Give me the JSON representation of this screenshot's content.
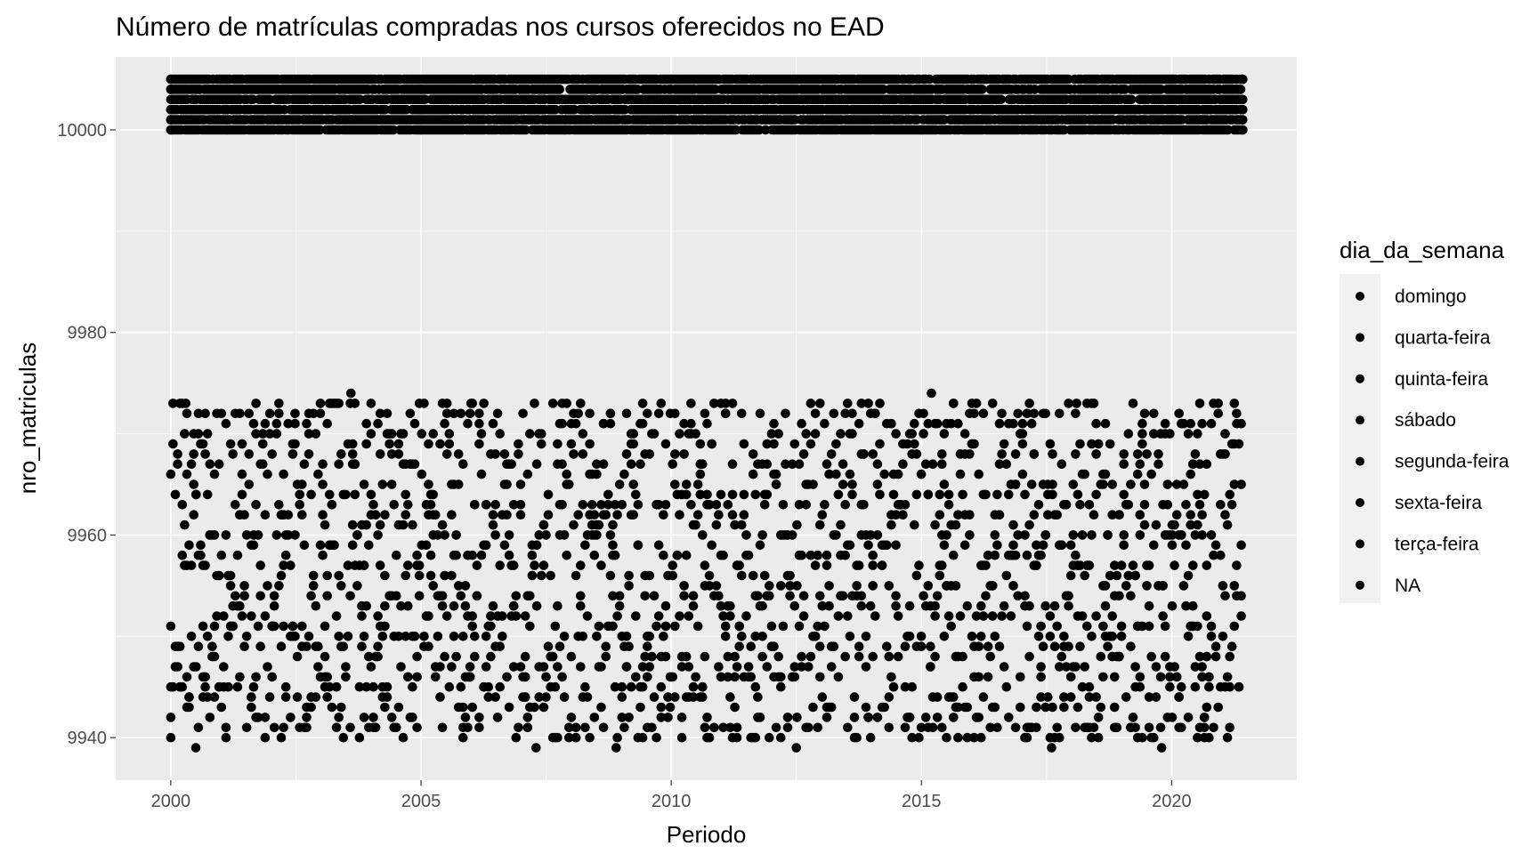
{
  "chart_data": {
    "type": "scatter",
    "title": "Número de matrículas compradas nos cursos oferecidos no EAD",
    "xlabel": "Periodo",
    "ylabel": "nro_matriculas",
    "xlim": [
      1998.9,
      2022.5
    ],
    "ylim": [
      9935.8,
      10007.2
    ],
    "x_ticks": [
      {
        "value": 2000,
        "label": "2000"
      },
      {
        "value": 2005,
        "label": "2005"
      },
      {
        "value": 2010,
        "label": "2010"
      },
      {
        "value": 2015,
        "label": "2015"
      },
      {
        "value": 2020,
        "label": "2020"
      }
    ],
    "y_ticks": [
      {
        "value": 9940,
        "label": "9940"
      },
      {
        "value": 9960,
        "label": "9960"
      },
      {
        "value": 9980,
        "label": "9980"
      },
      {
        "value": 10000,
        "label": "10000"
      }
    ],
    "grid": true,
    "panel_background": "#ebebeb",
    "grid_color": "#ffffff",
    "point_color": "#000000",
    "legend": {
      "title": "dia_da_semana",
      "position": "right",
      "entries": [
        "domingo",
        "quarta-feira",
        "quinta-feira",
        "sábado",
        "segunda-feira",
        "sexta-feira",
        "terça-feira",
        "NA"
      ]
    },
    "series": [
      {
        "x_range": [
          2000.0,
          2021.42
        ],
        "y_range": [
          10000,
          10005
        ],
        "y_values": [
          10000,
          10001,
          10002,
          10003,
          10004,
          10005
        ],
        "description_points": [
          [
            2000.0,
            10000
          ],
          [
            2000.0,
            10001
          ],
          [
            2000.0,
            10002
          ],
          [
            2000.0,
            10003
          ],
          [
            2000.0,
            10004
          ],
          [
            2000.0,
            10005
          ],
          [
            2005.0,
            10000
          ],
          [
            2005.0,
            10002
          ],
          [
            2005.0,
            10004
          ],
          [
            2010.0,
            10001
          ],
          [
            2010.0,
            10003
          ],
          [
            2010.0,
            10005
          ],
          [
            2015.0,
            10000
          ],
          [
            2015.0,
            10002
          ],
          [
            2015.0,
            10004
          ],
          [
            2020.0,
            10001
          ],
          [
            2020.0,
            10003
          ],
          [
            2020.0,
            10005
          ],
          [
            2021.42,
            10000
          ],
          [
            2021.42,
            10005
          ]
        ]
      },
      {
        "x_range": [
          2000.0,
          2021.42
        ],
        "y_range": [
          9939,
          9974
        ],
        "description_points": [
          [
            2000.5,
            9939
          ],
          [
            2003.6,
            9974
          ],
          [
            2007.3,
            9939
          ],
          [
            2008.9,
            9939
          ],
          [
            2012.5,
            9939
          ],
          [
            2015.2,
            9974
          ],
          [
            2017.6,
            9939
          ],
          [
            2019.8,
            9939
          ],
          [
            2000.3,
            9973
          ],
          [
            2006.0,
            9973
          ],
          [
            2013.8,
            9973
          ],
          [
            2018.1,
            9973
          ],
          [
            2021.3,
            9971
          ]
        ]
      }
    ]
  }
}
